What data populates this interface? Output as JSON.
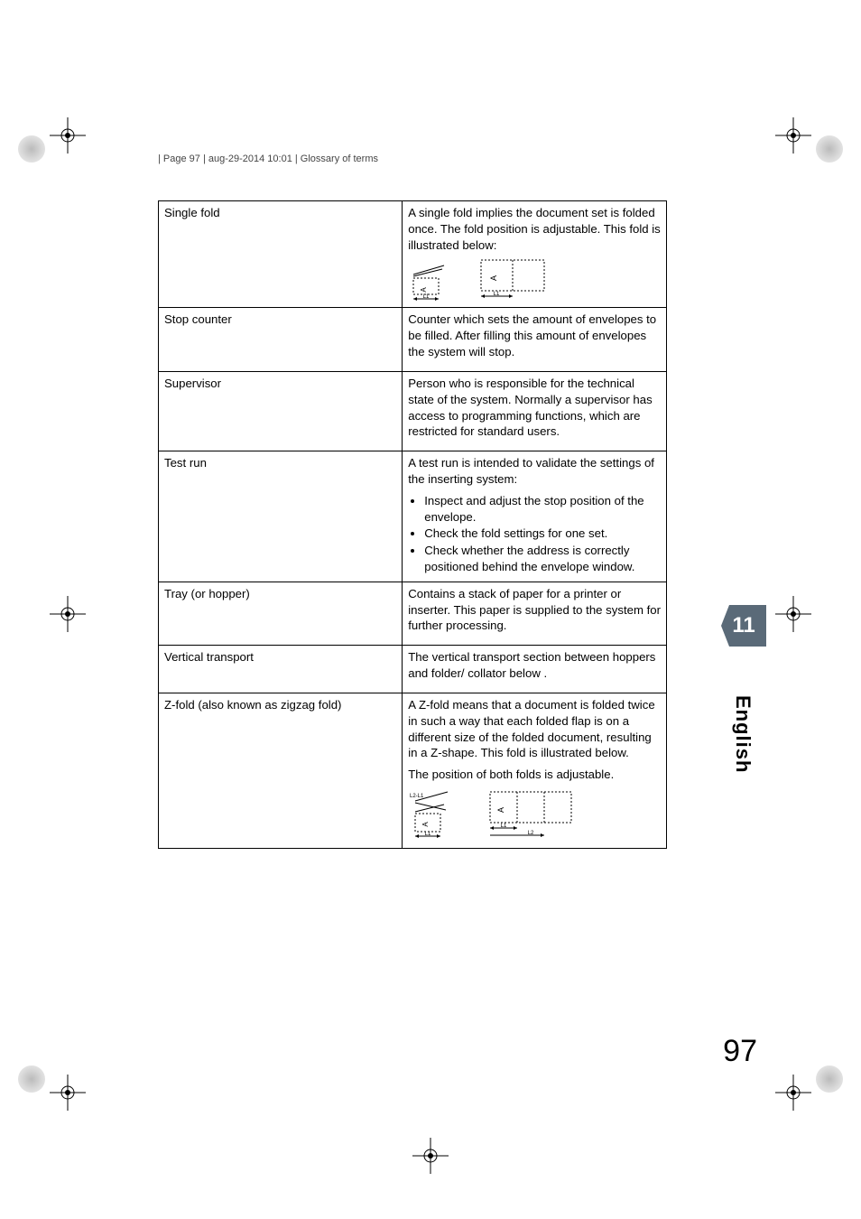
{
  "header": " | Page 97 | aug-29-2014 10:01 | Glossary of terms",
  "side_tab": "11",
  "side_lang": "English",
  "page_number": "97",
  "rows": [
    {
      "term": "Single fold",
      "def_main": "A single fold implies the document set is folded once. The fold position is adjustable. This fold is illustrated below:",
      "diagram": "single"
    },
    {
      "term": "Stop counter",
      "def_main": "Counter which sets the amount of envelopes to be filled. After filling this amount of envelopes the system will stop."
    },
    {
      "term": "Supervisor",
      "def_main": "Person who is responsible for the technical state of the system. Normally a supervisor has access to programming functions, which are restricted for standard users."
    },
    {
      "term": "Test run",
      "def_main": "A test run is intended to validate the settings of the inserting system:",
      "bullets": [
        "Inspect and adjust the stop position of the envelope.",
        "Check the fold settings for one set.",
        "Check whether the address is correctly positioned behind the envelope window."
      ]
    },
    {
      "term": "Tray (or hopper)",
      "def_main": "Contains a stack of paper for a printer or inserter. This paper is supplied to the system for further processing."
    },
    {
      "term": "Vertical transport",
      "def_main": "The vertical transport section between hoppers and folder/ collator below ."
    },
    {
      "term": "Z-fold (also known as zigzag fold)",
      "def_main": "A Z-fold means that a document is folded twice in such a way that each folded flap is on a different size of the folded document, resulting in a Z-shape. This fold is illustrated below.",
      "def_extra": "The position of both folds is adjustable.",
      "diagram": "zfold"
    }
  ],
  "colors": {
    "tab_bg": "#5a6a78",
    "tab_fg": "#ffffff",
    "border": "#000000",
    "text": "#000000"
  }
}
